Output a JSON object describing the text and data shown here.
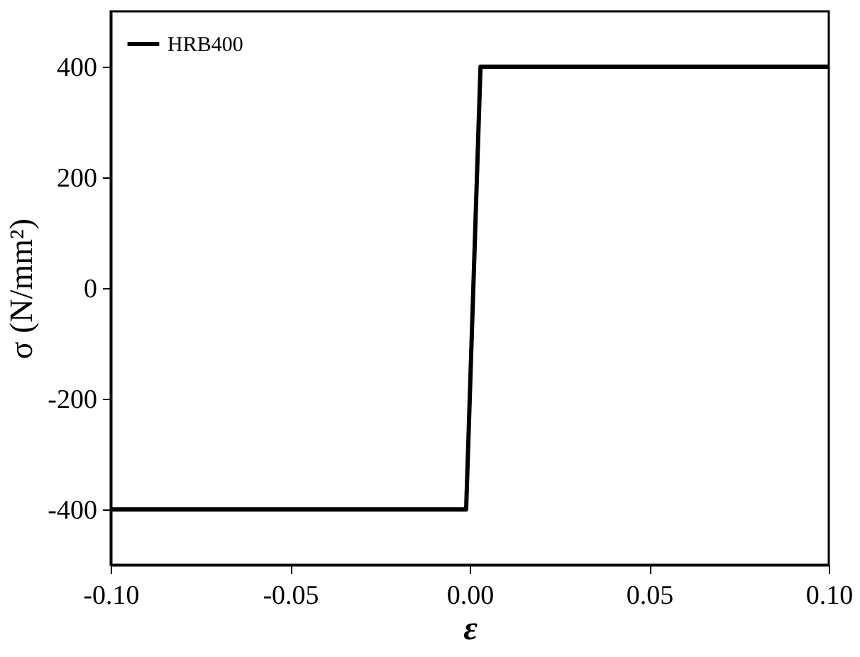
{
  "chart_data": {
    "type": "line",
    "xlabel": "ε",
    "ylabel": "σ (N/mm²)",
    "x": [
      -0.1,
      -0.001,
      0.003,
      0.1
    ],
    "series": [
      {
        "name": "HRB400",
        "color": "#000000",
        "values": [
          -400,
          -400,
          400,
          400
        ]
      }
    ],
    "xlim": [
      -0.1,
      0.1
    ],
    "xticks": [
      {
        "value": -0.1,
        "label": "-0.10"
      },
      {
        "value": -0.05,
        "label": "-0.05"
      },
      {
        "value": 0,
        "label": "0.00"
      },
      {
        "value": 0.05,
        "label": "0.05"
      },
      {
        "value": 0.1,
        "label": "0.10"
      }
    ],
    "ylim": [
      -500,
      500
    ],
    "yticks": [
      -400,
      -200,
      0,
      200,
      400
    ],
    "legend": "top left",
    "grid": false,
    "line_style": "solid",
    "marker": "none"
  }
}
